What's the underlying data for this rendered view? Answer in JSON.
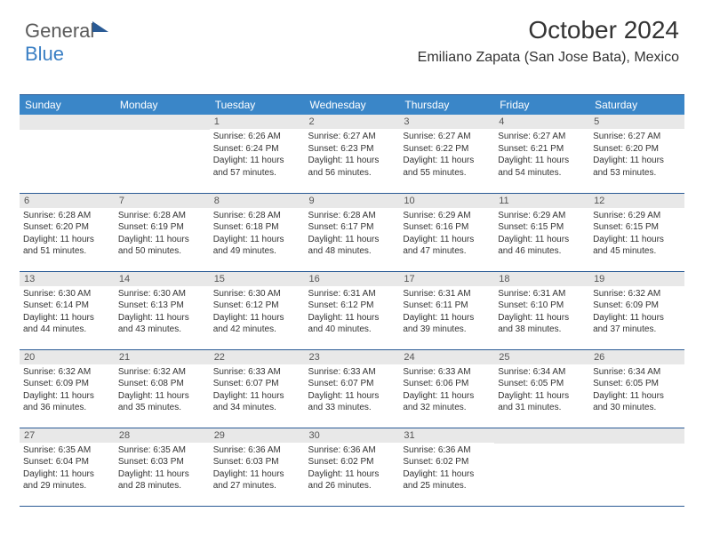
{
  "brand": {
    "part1": "General",
    "part2": "Blue"
  },
  "title": "October 2024",
  "location": "Emiliano Zapata (San Jose Bata), Mexico",
  "colors": {
    "header_bg": "#3a86c8",
    "header_text": "#ffffff",
    "daynum_bg": "#e8e8e8",
    "border": "#2a5b95"
  },
  "weekdays": [
    "Sunday",
    "Monday",
    "Tuesday",
    "Wednesday",
    "Thursday",
    "Friday",
    "Saturday"
  ],
  "first_weekday_index": 2,
  "days": [
    {
      "n": 1,
      "sr": "6:26 AM",
      "ss": "6:24 PM",
      "dl": "11 hours and 57 minutes."
    },
    {
      "n": 2,
      "sr": "6:27 AM",
      "ss": "6:23 PM",
      "dl": "11 hours and 56 minutes."
    },
    {
      "n": 3,
      "sr": "6:27 AM",
      "ss": "6:22 PM",
      "dl": "11 hours and 55 minutes."
    },
    {
      "n": 4,
      "sr": "6:27 AM",
      "ss": "6:21 PM",
      "dl": "11 hours and 54 minutes."
    },
    {
      "n": 5,
      "sr": "6:27 AM",
      "ss": "6:20 PM",
      "dl": "11 hours and 53 minutes."
    },
    {
      "n": 6,
      "sr": "6:28 AM",
      "ss": "6:20 PM",
      "dl": "11 hours and 51 minutes."
    },
    {
      "n": 7,
      "sr": "6:28 AM",
      "ss": "6:19 PM",
      "dl": "11 hours and 50 minutes."
    },
    {
      "n": 8,
      "sr": "6:28 AM",
      "ss": "6:18 PM",
      "dl": "11 hours and 49 minutes."
    },
    {
      "n": 9,
      "sr": "6:28 AM",
      "ss": "6:17 PM",
      "dl": "11 hours and 48 minutes."
    },
    {
      "n": 10,
      "sr": "6:29 AM",
      "ss": "6:16 PM",
      "dl": "11 hours and 47 minutes."
    },
    {
      "n": 11,
      "sr": "6:29 AM",
      "ss": "6:15 PM",
      "dl": "11 hours and 46 minutes."
    },
    {
      "n": 12,
      "sr": "6:29 AM",
      "ss": "6:15 PM",
      "dl": "11 hours and 45 minutes."
    },
    {
      "n": 13,
      "sr": "6:30 AM",
      "ss": "6:14 PM",
      "dl": "11 hours and 44 minutes."
    },
    {
      "n": 14,
      "sr": "6:30 AM",
      "ss": "6:13 PM",
      "dl": "11 hours and 43 minutes."
    },
    {
      "n": 15,
      "sr": "6:30 AM",
      "ss": "6:12 PM",
      "dl": "11 hours and 42 minutes."
    },
    {
      "n": 16,
      "sr": "6:31 AM",
      "ss": "6:12 PM",
      "dl": "11 hours and 40 minutes."
    },
    {
      "n": 17,
      "sr": "6:31 AM",
      "ss": "6:11 PM",
      "dl": "11 hours and 39 minutes."
    },
    {
      "n": 18,
      "sr": "6:31 AM",
      "ss": "6:10 PM",
      "dl": "11 hours and 38 minutes."
    },
    {
      "n": 19,
      "sr": "6:32 AM",
      "ss": "6:09 PM",
      "dl": "11 hours and 37 minutes."
    },
    {
      "n": 20,
      "sr": "6:32 AM",
      "ss": "6:09 PM",
      "dl": "11 hours and 36 minutes."
    },
    {
      "n": 21,
      "sr": "6:32 AM",
      "ss": "6:08 PM",
      "dl": "11 hours and 35 minutes."
    },
    {
      "n": 22,
      "sr": "6:33 AM",
      "ss": "6:07 PM",
      "dl": "11 hours and 34 minutes."
    },
    {
      "n": 23,
      "sr": "6:33 AM",
      "ss": "6:07 PM",
      "dl": "11 hours and 33 minutes."
    },
    {
      "n": 24,
      "sr": "6:33 AM",
      "ss": "6:06 PM",
      "dl": "11 hours and 32 minutes."
    },
    {
      "n": 25,
      "sr": "6:34 AM",
      "ss": "6:05 PM",
      "dl": "11 hours and 31 minutes."
    },
    {
      "n": 26,
      "sr": "6:34 AM",
      "ss": "6:05 PM",
      "dl": "11 hours and 30 minutes."
    },
    {
      "n": 27,
      "sr": "6:35 AM",
      "ss": "6:04 PM",
      "dl": "11 hours and 29 minutes."
    },
    {
      "n": 28,
      "sr": "6:35 AM",
      "ss": "6:03 PM",
      "dl": "11 hours and 28 minutes."
    },
    {
      "n": 29,
      "sr": "6:36 AM",
      "ss": "6:03 PM",
      "dl": "11 hours and 27 minutes."
    },
    {
      "n": 30,
      "sr": "6:36 AM",
      "ss": "6:02 PM",
      "dl": "11 hours and 26 minutes."
    },
    {
      "n": 31,
      "sr": "6:36 AM",
      "ss": "6:02 PM",
      "dl": "11 hours and 25 minutes."
    }
  ],
  "labels": {
    "sunrise": "Sunrise:",
    "sunset": "Sunset:",
    "daylight": "Daylight:"
  }
}
